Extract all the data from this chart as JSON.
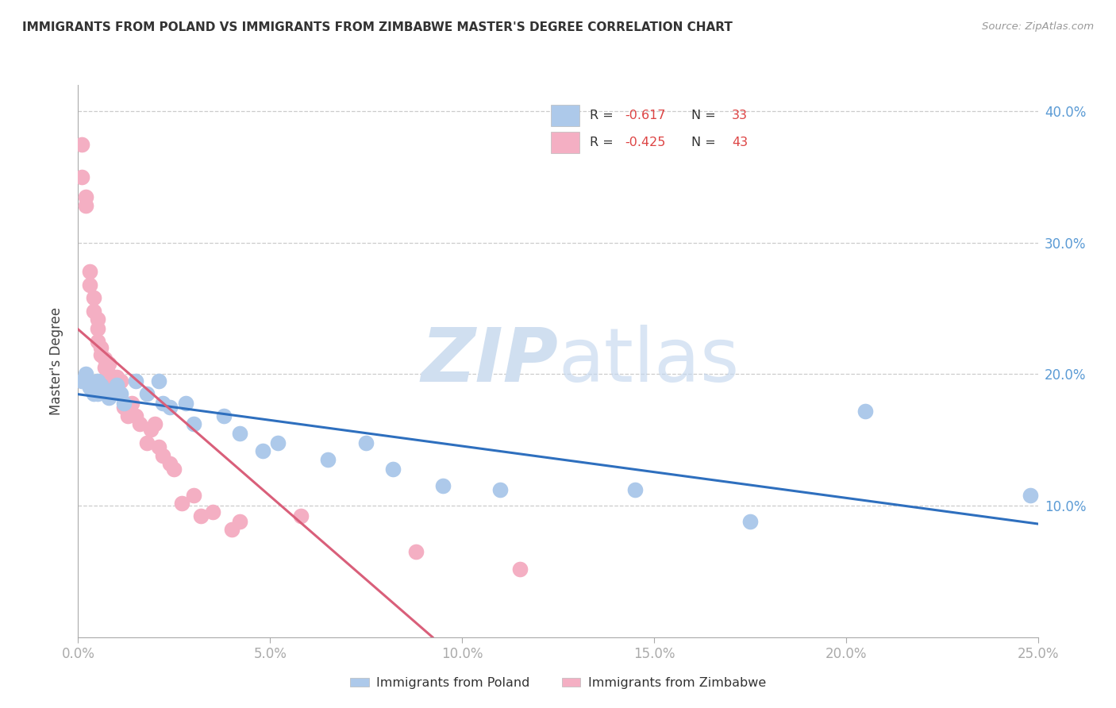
{
  "title": "IMMIGRANTS FROM POLAND VS IMMIGRANTS FROM ZIMBABWE MASTER'S DEGREE CORRELATION CHART",
  "source": "Source: ZipAtlas.com",
  "ylabel": "Master's Degree",
  "xlim": [
    0.0,
    0.25
  ],
  "ylim": [
    0.0,
    0.42
  ],
  "xtick_labels": [
    "0.0%",
    "5.0%",
    "10.0%",
    "15.0%",
    "20.0%",
    "25.0%"
  ],
  "xtick_values": [
    0.0,
    0.05,
    0.1,
    0.15,
    0.2,
    0.25
  ],
  "ytick_labels": [
    "10.0%",
    "20.0%",
    "30.0%",
    "40.0%"
  ],
  "ytick_values": [
    0.1,
    0.2,
    0.3,
    0.4
  ],
  "poland_R": -0.617,
  "poland_N": 33,
  "zimbabwe_R": -0.425,
  "zimbabwe_N": 43,
  "poland_color": "#adc9ea",
  "zimbabwe_color": "#f4afc3",
  "poland_line_color": "#2e6fbe",
  "zimbabwe_line_color": "#d95f7a",
  "watermark_zip": "ZIP",
  "watermark_atlas": "atlas",
  "poland_x": [
    0.001,
    0.002,
    0.003,
    0.003,
    0.004,
    0.005,
    0.005,
    0.006,
    0.007,
    0.008,
    0.01,
    0.011,
    0.012,
    0.015,
    0.018,
    0.021,
    0.022,
    0.024,
    0.028,
    0.03,
    0.038,
    0.042,
    0.048,
    0.052,
    0.065,
    0.075,
    0.082,
    0.095,
    0.11,
    0.145,
    0.175,
    0.205,
    0.248
  ],
  "poland_y": [
    0.195,
    0.2,
    0.195,
    0.19,
    0.185,
    0.195,
    0.185,
    0.192,
    0.188,
    0.182,
    0.192,
    0.185,
    0.178,
    0.195,
    0.185,
    0.195,
    0.178,
    0.175,
    0.178,
    0.162,
    0.168,
    0.155,
    0.142,
    0.148,
    0.135,
    0.148,
    0.128,
    0.115,
    0.112,
    0.112,
    0.088,
    0.172,
    0.108
  ],
  "zimbabwe_x": [
    0.001,
    0.001,
    0.002,
    0.002,
    0.003,
    0.003,
    0.004,
    0.004,
    0.005,
    0.005,
    0.005,
    0.006,
    0.006,
    0.007,
    0.007,
    0.008,
    0.008,
    0.008,
    0.009,
    0.009,
    0.01,
    0.011,
    0.012,
    0.013,
    0.014,
    0.015,
    0.016,
    0.018,
    0.019,
    0.02,
    0.021,
    0.022,
    0.024,
    0.025,
    0.027,
    0.03,
    0.032,
    0.035,
    0.04,
    0.042,
    0.058,
    0.088,
    0.115
  ],
  "zimbabwe_y": [
    0.375,
    0.35,
    0.335,
    0.328,
    0.278,
    0.268,
    0.258,
    0.248,
    0.242,
    0.235,
    0.225,
    0.22,
    0.215,
    0.212,
    0.205,
    0.2,
    0.198,
    0.208,
    0.195,
    0.188,
    0.198,
    0.195,
    0.175,
    0.168,
    0.178,
    0.168,
    0.162,
    0.148,
    0.158,
    0.162,
    0.145,
    0.138,
    0.132,
    0.128,
    0.102,
    0.108,
    0.092,
    0.095,
    0.082,
    0.088,
    0.092,
    0.065,
    0.052
  ]
}
